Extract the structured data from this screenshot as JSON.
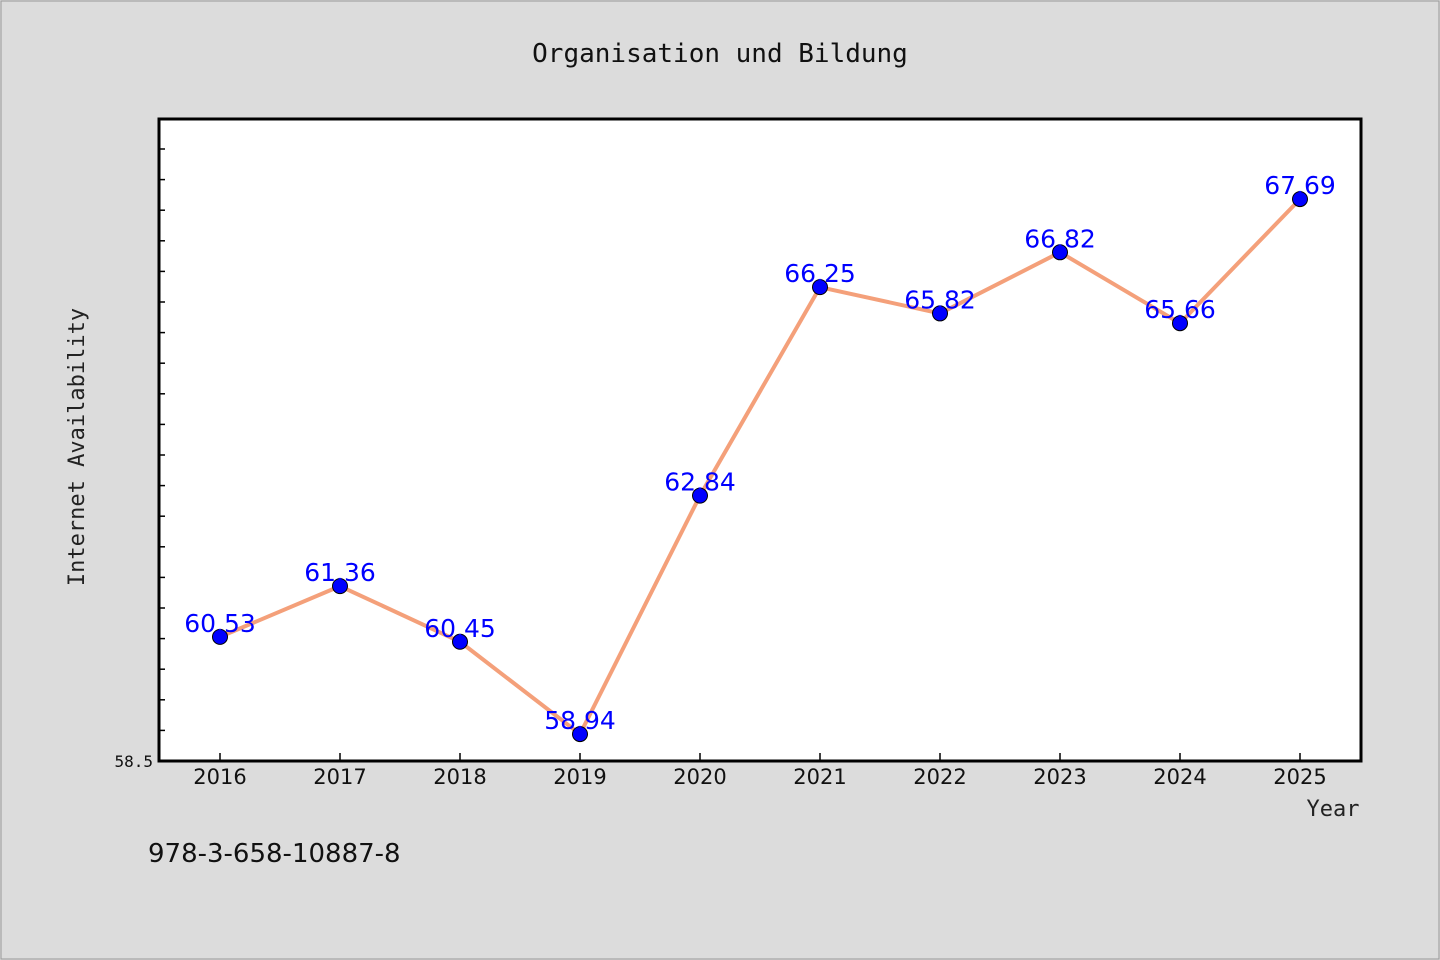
{
  "chart_data": {
    "type": "line",
    "title": "Organisation und Bildung",
    "xlabel": "Year",
    "ylabel": "Internet Availability",
    "categories": [
      "2016",
      "2017",
      "2018",
      "2019",
      "2020",
      "2021",
      "2022",
      "2023",
      "2024",
      "2025"
    ],
    "series": [
      {
        "values": [
          60.53,
          61.36,
          60.45,
          58.94,
          62.84,
          66.25,
          65.82,
          66.82,
          65.66,
          67.69
        ],
        "labels": [
          "60.53",
          "61.36",
          "60.45",
          "58.94",
          "62.84",
          "66.25",
          "65.82",
          "66.82",
          "65.66",
          "67.69"
        ]
      }
    ],
    "ylim": [
      58.5,
      69.0
    ],
    "ytick_labels": [
      "58.5"
    ],
    "grid": false,
    "colors": {
      "line": "#f4a07a",
      "marker": "#0000ff",
      "label": "#0000ff",
      "background": "#dcdcdc",
      "plot_background": "#ffffff"
    }
  },
  "footer": {
    "text": "978-3-658-10887-8"
  }
}
